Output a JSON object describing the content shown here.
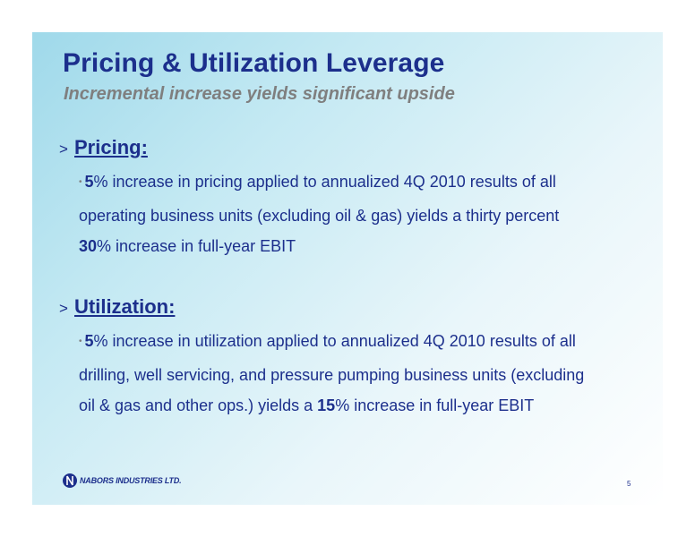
{
  "slide": {
    "title": "Pricing & Utilization Leverage",
    "subtitle": "Incremental increase yields significant upside",
    "page_number": "5"
  },
  "sections": {
    "pricing": {
      "marker": ">",
      "heading": "Pricing:",
      "bullet_mark": "•",
      "pct1": "5",
      "t1": "% increase in pricing applied to annualized 4Q 2010 results of all operating business units (excluding oil & gas) yields a thirty percent ",
      "pct2": "30",
      "t2": "%  increase in full-year EBIT"
    },
    "utilization": {
      "marker": ">",
      "heading": "Utilization:",
      "bullet_mark": "•",
      "pct1": "5",
      "t1": "% increase in utilization applied to annualized 4Q 2010 results of all drilling, well servicing, and pressure pumping business units (excluding oil & gas and other ops.) yields a ",
      "pct2": "15",
      "t2": "% increase in full-year EBIT"
    }
  },
  "logo": {
    "text": "NABORS INDUSTRIES LTD.",
    "icon": "nabors-logo-icon"
  }
}
